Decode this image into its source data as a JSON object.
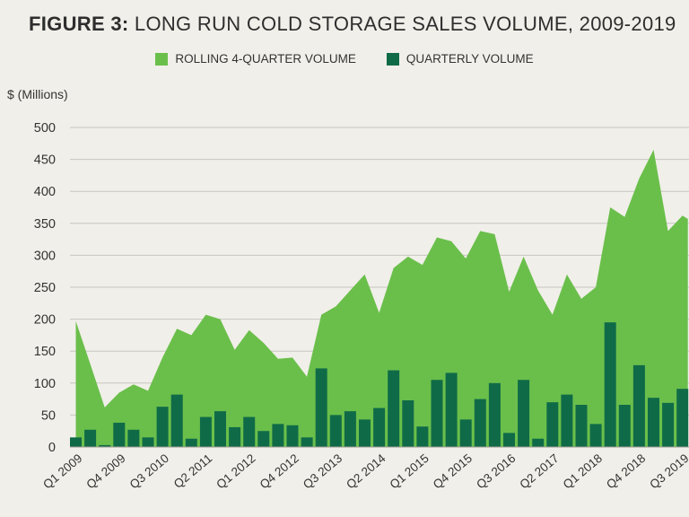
{
  "title_prefix": "FIGURE 3:",
  "title_main": "LONG RUN COLD STORAGE SALES VOLUME, 2009-2019",
  "colors": {
    "rolling": "#6abf4b",
    "quarterly": "#0f6b47",
    "grid": "#c8c6c0",
    "background": "#f1efe9"
  },
  "chart_data": {
    "type": "bar",
    "title": "LONG RUN COLD STORAGE SALES VOLUME, 2009-2019",
    "ylabel": "$ (Millions)",
    "xlabel": "",
    "ylim": [
      0,
      500
    ],
    "yticks": [
      0,
      50,
      100,
      150,
      200,
      250,
      300,
      350,
      400,
      450,
      500
    ],
    "grid": true,
    "legend_position": "top",
    "xtick_labels": [
      "Q1 2009",
      "Q4 2009",
      "Q3 2010",
      "Q2 2011",
      "Q1 2012",
      "Q4 2012",
      "Q3 2013",
      "Q2 2014",
      "Q1 2015",
      "Q4 2015",
      "Q3 2016",
      "Q2 2017",
      "Q1 2018",
      "Q4 2018",
      "Q3 2019"
    ],
    "xtick_every": 3,
    "categories": [
      "Q1 2009",
      "Q2 2009",
      "Q3 2009",
      "Q4 2009",
      "Q1 2010",
      "Q2 2010",
      "Q3 2010",
      "Q4 2010",
      "Q1 2011",
      "Q2 2011",
      "Q3 2011",
      "Q4 2011",
      "Q1 2012",
      "Q2 2012",
      "Q3 2012",
      "Q4 2012",
      "Q1 2013",
      "Q2 2013",
      "Q3 2013",
      "Q4 2013",
      "Q1 2014",
      "Q2 2014",
      "Q3 2014",
      "Q4 2014",
      "Q1 2015",
      "Q2 2015",
      "Q3 2015",
      "Q4 2015",
      "Q1 2016",
      "Q2 2016",
      "Q3 2016",
      "Q4 2016",
      "Q1 2017",
      "Q2 2017",
      "Q3 2017",
      "Q4 2017",
      "Q1 2018",
      "Q2 2018",
      "Q3 2018",
      "Q4 2018",
      "Q1 2019",
      "Q2 2019",
      "Q3 2019"
    ],
    "series": [
      {
        "name": "ROLLING 4-QUARTER VOLUME",
        "type": "area",
        "values": [
          197,
          130,
          62,
          85,
          98,
          88,
          140,
          185,
          175,
          207,
          200,
          152,
          183,
          163,
          138,
          140,
          110,
          207,
          220,
          245,
          270,
          210,
          280,
          298,
          285,
          328,
          322,
          295,
          338,
          333,
          243,
          298,
          245,
          207,
          270,
          232,
          250,
          375,
          360,
          420,
          465,
          338,
          362
        ]
      },
      {
        "name": "QUARTERLY VOLUME",
        "type": "bar",
        "values": [
          15,
          27,
          3,
          38,
          27,
          15,
          63,
          82,
          13,
          47,
          56,
          31,
          47,
          25,
          36,
          34,
          15,
          123,
          50,
          56,
          43,
          61,
          120,
          73,
          32,
          105,
          116,
          43,
          75,
          100,
          22,
          105,
          13,
          70,
          82,
          66,
          36,
          195,
          66,
          128,
          77,
          69,
          91
        ]
      }
    ]
  }
}
